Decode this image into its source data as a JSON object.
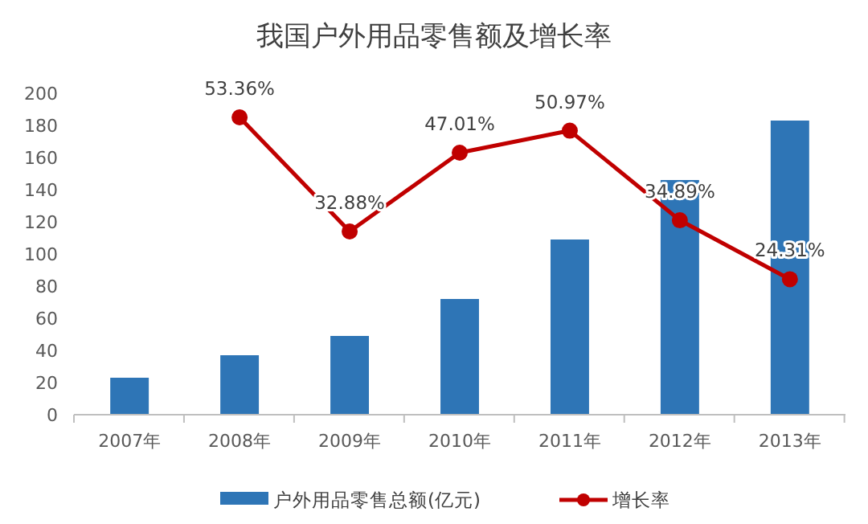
{
  "chart_data": {
    "type": "bar",
    "title": "我国户外用品零售额及增长率",
    "categories": [
      "2007年",
      "2008年",
      "2009年",
      "2010年",
      "2011年",
      "2012年",
      "2013年"
    ],
    "series": [
      {
        "name": "户外用品零售总额(亿元)",
        "color": "#2e75b6",
        "values": [
          23,
          37,
          49,
          72,
          109,
          146,
          183
        ]
      },
      {
        "name": "增长率",
        "type": "line",
        "axis": "y2",
        "color": "#c00000",
        "marker": "circle",
        "values": [
          null,
          53.36,
          32.88,
          47.01,
          50.97,
          34.89,
          24.31
        ],
        "value_labels": [
          null,
          "53.36%",
          "32.88%",
          "47.01%",
          "50.97%",
          "34.89%",
          "24.31%"
        ]
      }
    ],
    "ylim": [
      0,
      200
    ],
    "yticks": [
      0,
      20,
      40,
      60,
      80,
      100,
      120,
      140,
      160,
      180,
      200
    ],
    "grid": false,
    "legend": "bottom",
    "tick_labels": "xy"
  }
}
